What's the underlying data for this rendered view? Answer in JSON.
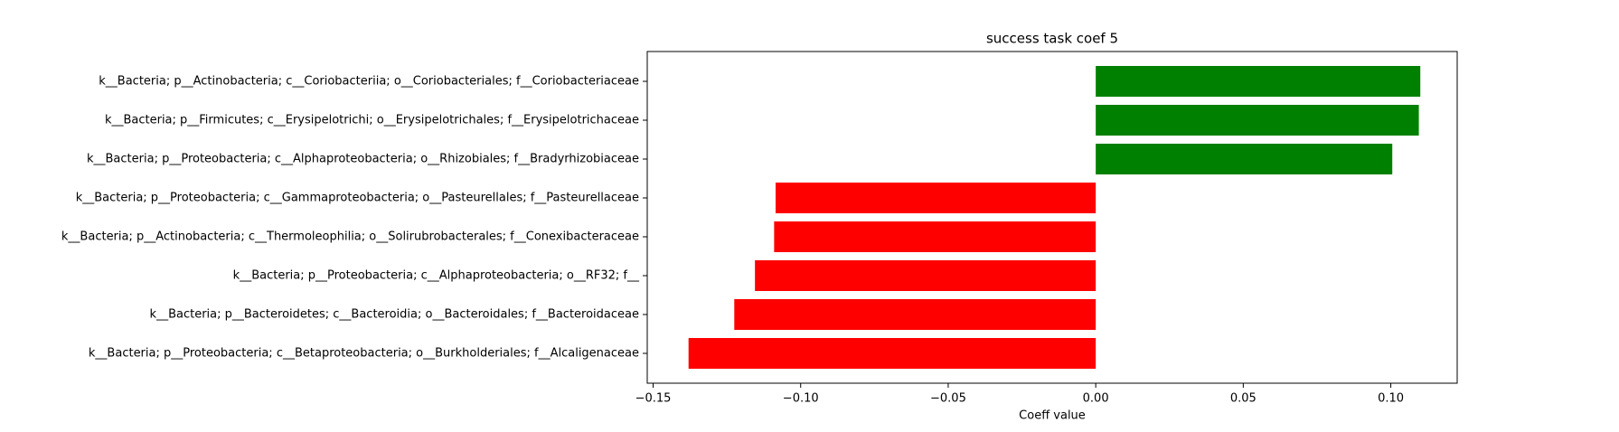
{
  "chart_data": {
    "type": "bar",
    "orientation": "horizontal",
    "title": "success task coef 5",
    "xlabel": "Coeff value",
    "ylabel": "",
    "xlim": [
      -0.152,
      0.1225
    ],
    "xticks": [
      -0.15,
      -0.1,
      -0.05,
      0.0,
      0.05,
      0.1
    ],
    "xtick_labels": [
      "−0.15",
      "−0.10",
      "−0.05",
      "0.00",
      "0.05",
      "0.10"
    ],
    "grid": false,
    "categories": [
      "k__Bacteria; p__Actinobacteria; c__Coriobacteriia; o__Coriobacteriales; f__Coriobacteriaceae",
      "k__Bacteria; p__Firmicutes; c__Erysipelotrichi; o__Erysipelotrichales; f__Erysipelotrichaceae",
      "k__Bacteria; p__Proteobacteria; c__Alphaproteobacteria; o__Rhizobiales; f__Bradyrhizobiaceae",
      "k__Bacteria; p__Proteobacteria; c__Gammaproteobacteria; o__Pasteurellales; f__Pasteurellaceae",
      "k__Bacteria; p__Actinobacteria; c__Thermoleophilia; o__Solirubrobacterales; f__Conexibacteraceae",
      "k__Bacteria; p__Proteobacteria; c__Alphaproteobacteria; o__RF32; f__",
      "k__Bacteria; p__Bacteroidetes; c__Bacteroidia; o__Bacteroidales; f__Bacteroidaceae",
      "k__Bacteria; p__Proteobacteria; c__Betaproteobacteria; o__Burkholderiales; f__Alcaligenaceae"
    ],
    "values": [
      0.11,
      0.1095,
      0.1005,
      -0.1085,
      -0.109,
      -0.1155,
      -0.1225,
      -0.138
    ],
    "colors": {
      "positive": "#008000",
      "negative": "#ff0000"
    }
  }
}
